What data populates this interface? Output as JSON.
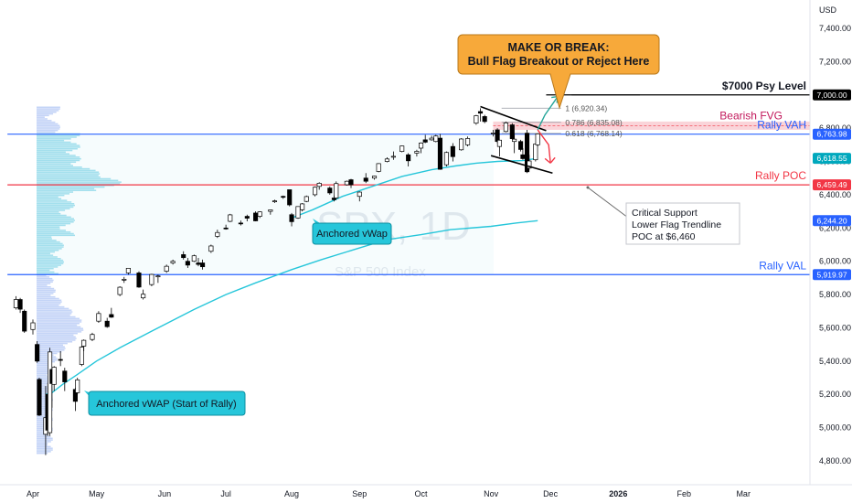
{
  "chart_data": {
    "type": "candlestick",
    "symbol": "SPX, 1D",
    "symbol_desc": "S&P 500 Index",
    "currency": "USD",
    "grid": false,
    "ylim": [
      4700,
      7600
    ],
    "y_ticks": [
      4800,
      5000,
      5200,
      5400,
      5600,
      5800,
      6000,
      6200,
      6400,
      6600,
      6800,
      7000,
      7200,
      7400
    ],
    "x_months": [
      {
        "label": "Apr",
        "date": "2025-04-01"
      },
      {
        "label": "May",
        "date": "2025-05-01"
      },
      {
        "label": "Jun",
        "date": "2025-06-02"
      },
      {
        "label": "Jul",
        "date": "2025-07-01"
      },
      {
        "label": "Aug",
        "date": "2025-08-01"
      },
      {
        "label": "Sep",
        "date": "2025-09-02"
      },
      {
        "label": "Oct",
        "date": "2025-10-01"
      },
      {
        "label": "Nov",
        "date": "2025-11-03"
      },
      {
        "label": "Dec",
        "date": "2025-12-01"
      },
      {
        "label": "2026",
        "date": "2026-01-02"
      },
      {
        "label": "Feb",
        "date": "2026-02-02"
      },
      {
        "label": "Mar",
        "date": "2026-03-02"
      }
    ],
    "candles": [
      {
        "date": "2025-03-24",
        "o": 5720,
        "h": 5790,
        "l": 5710,
        "c": 5770
      },
      {
        "date": "2025-03-26",
        "o": 5770,
        "h": 5780,
        "l": 5690,
        "c": 5712
      },
      {
        "date": "2025-03-28",
        "o": 5700,
        "h": 5710,
        "l": 5570,
        "c": 5580
      },
      {
        "date": "2025-04-01",
        "o": 5590,
        "h": 5650,
        "l": 5560,
        "c": 5630
      },
      {
        "date": "2025-04-03",
        "o": 5500,
        "h": 5520,
        "l": 5390,
        "c": 5400
      },
      {
        "date": "2025-04-04",
        "o": 5290,
        "h": 5300,
        "l": 5070,
        "c": 5075
      },
      {
        "date": "2025-04-07",
        "o": 4960,
        "h": 5250,
        "l": 4835,
        "c": 5060
      },
      {
        "date": "2025-04-08",
        "o": 5200,
        "h": 5270,
        "l": 4950,
        "c": 4985
      },
      {
        "date": "2025-04-09",
        "o": 4970,
        "h": 5480,
        "l": 4950,
        "c": 5455
      },
      {
        "date": "2025-04-10",
        "o": 5350,
        "h": 5360,
        "l": 5120,
        "c": 5265
      },
      {
        "date": "2025-04-11",
        "o": 5260,
        "h": 5370,
        "l": 5220,
        "c": 5363
      },
      {
        "date": "2025-04-14",
        "o": 5410,
        "h": 5460,
        "l": 5370,
        "c": 5406
      },
      {
        "date": "2025-04-16",
        "o": 5340,
        "h": 5360,
        "l": 5220,
        "c": 5275
      },
      {
        "date": "2025-04-21",
        "o": 5230,
        "h": 5240,
        "l": 5100,
        "c": 5158
      },
      {
        "date": "2025-04-22",
        "o": 5210,
        "h": 5300,
        "l": 5200,
        "c": 5287
      },
      {
        "date": "2025-04-24",
        "o": 5380,
        "h": 5490,
        "l": 5370,
        "c": 5484
      },
      {
        "date": "2025-04-25",
        "o": 5490,
        "h": 5530,
        "l": 5460,
        "c": 5525
      },
      {
        "date": "2025-04-29",
        "o": 5530,
        "h": 5570,
        "l": 5520,
        "c": 5560
      },
      {
        "date": "2025-05-02",
        "o": 5640,
        "h": 5700,
        "l": 5630,
        "c": 5686
      },
      {
        "date": "2025-05-06",
        "o": 5640,
        "h": 5660,
        "l": 5600,
        "c": 5607
      },
      {
        "date": "2025-05-08",
        "o": 5680,
        "h": 5720,
        "l": 5660,
        "c": 5664
      },
      {
        "date": "2025-05-12",
        "o": 5800,
        "h": 5850,
        "l": 5790,
        "c": 5844
      },
      {
        "date": "2025-05-14",
        "o": 5890,
        "h": 5906,
        "l": 5870,
        "c": 5892
      },
      {
        "date": "2025-05-16",
        "o": 5930,
        "h": 5960,
        "l": 5920,
        "c": 5958
      },
      {
        "date": "2025-05-21",
        "o": 5930,
        "h": 5940,
        "l": 5840,
        "c": 5845
      },
      {
        "date": "2025-05-23",
        "o": 5780,
        "h": 5830,
        "l": 5770,
        "c": 5802
      },
      {
        "date": "2025-05-27",
        "o": 5860,
        "h": 5925,
        "l": 5850,
        "c": 5921
      },
      {
        "date": "2025-05-30",
        "o": 5910,
        "h": 5920,
        "l": 5870,
        "c": 5912
      },
      {
        "date": "2025-06-03",
        "o": 5940,
        "h": 5980,
        "l": 5930,
        "c": 5970
      },
      {
        "date": "2025-06-06",
        "o": 5990,
        "h": 6010,
        "l": 5980,
        "c": 6000
      },
      {
        "date": "2025-06-11",
        "o": 6040,
        "h": 6060,
        "l": 6010,
        "c": 6022
      },
      {
        "date": "2025-06-13",
        "o": 6000,
        "h": 6020,
        "l": 5960,
        "c": 5977
      },
      {
        "date": "2025-06-16",
        "o": 6000,
        "h": 6040,
        "l": 5995,
        "c": 6033
      },
      {
        "date": "2025-06-18",
        "o": 5990,
        "h": 6020,
        "l": 5970,
        "c": 5981
      },
      {
        "date": "2025-06-20",
        "o": 5990,
        "h": 6010,
        "l": 5950,
        "c": 5967
      },
      {
        "date": "2025-06-24",
        "o": 6060,
        "h": 6100,
        "l": 6050,
        "c": 6092
      },
      {
        "date": "2025-06-27",
        "o": 6150,
        "h": 6190,
        "l": 6140,
        "c": 6173
      },
      {
        "date": "2025-07-01",
        "o": 6200,
        "h": 6220,
        "l": 6190,
        "c": 6198
      },
      {
        "date": "2025-07-03",
        "o": 6240,
        "h": 6285,
        "l": 6235,
        "c": 6279
      },
      {
        "date": "2025-07-08",
        "o": 6230,
        "h": 6245,
        "l": 6215,
        "c": 6226
      },
      {
        "date": "2025-07-11",
        "o": 6270,
        "h": 6280,
        "l": 6240,
        "c": 6259
      },
      {
        "date": "2025-07-15",
        "o": 6290,
        "h": 6300,
        "l": 6240,
        "c": 6243
      },
      {
        "date": "2025-07-17",
        "o": 6270,
        "h": 6300,
        "l": 6260,
        "c": 6297
      },
      {
        "date": "2025-07-22",
        "o": 6300,
        "h": 6310,
        "l": 6280,
        "c": 6309
      },
      {
        "date": "2025-07-24",
        "o": 6360,
        "h": 6370,
        "l": 6350,
        "c": 6363
      },
      {
        "date": "2025-07-28",
        "o": 6390,
        "h": 6395,
        "l": 6375,
        "c": 6389
      },
      {
        "date": "2025-07-31",
        "o": 6430,
        "h": 6430,
        "l": 6330,
        "c": 6339
      },
      {
        "date": "2025-08-01",
        "o": 6280,
        "h": 6290,
        "l": 6210,
        "c": 6238
      },
      {
        "date": "2025-08-04",
        "o": 6260,
        "h": 6330,
        "l": 6255,
        "c": 6329
      },
      {
        "date": "2025-08-06",
        "o": 6310,
        "h": 6350,
        "l": 6300,
        "c": 6345
      },
      {
        "date": "2025-08-08",
        "o": 6360,
        "h": 6395,
        "l": 6355,
        "c": 6389
      },
      {
        "date": "2025-08-12",
        "o": 6400,
        "h": 6450,
        "l": 6390,
        "c": 6445
      },
      {
        "date": "2025-08-14",
        "o": 6450,
        "h": 6475,
        "l": 6430,
        "c": 6469
      },
      {
        "date": "2025-08-19",
        "o": 6440,
        "h": 6450,
        "l": 6400,
        "c": 6411
      },
      {
        "date": "2025-08-21",
        "o": 6380,
        "h": 6395,
        "l": 6360,
        "c": 6370
      },
      {
        "date": "2025-08-22",
        "o": 6380,
        "h": 6480,
        "l": 6375,
        "c": 6467
      },
      {
        "date": "2025-08-27",
        "o": 6460,
        "h": 6485,
        "l": 6455,
        "c": 6481
      },
      {
        "date": "2025-08-29",
        "o": 6490,
        "h": 6495,
        "l": 6440,
        "c": 6460
      },
      {
        "date": "2025-09-02",
        "o": 6390,
        "h": 6420,
        "l": 6360,
        "c": 6416
      },
      {
        "date": "2025-09-05",
        "o": 6500,
        "h": 6530,
        "l": 6470,
        "c": 6481
      },
      {
        "date": "2025-09-09",
        "o": 6500,
        "h": 6515,
        "l": 6490,
        "c": 6512
      },
      {
        "date": "2025-09-11",
        "o": 6540,
        "h": 6590,
        "l": 6535,
        "c": 6587
      },
      {
        "date": "2025-09-15",
        "o": 6600,
        "h": 6625,
        "l": 6595,
        "c": 6615
      },
      {
        "date": "2025-09-18",
        "o": 6630,
        "h": 6660,
        "l": 6610,
        "c": 6631
      },
      {
        "date": "2025-09-22",
        "o": 6660,
        "h": 6695,
        "l": 6655,
        "c": 6693
      },
      {
        "date": "2025-09-25",
        "o": 6640,
        "h": 6650,
        "l": 6570,
        "c": 6604
      },
      {
        "date": "2025-09-29",
        "o": 6650,
        "h": 6670,
        "l": 6630,
        "c": 6661
      },
      {
        "date": "2025-10-01",
        "o": 6680,
        "h": 6715,
        "l": 6650,
        "c": 6711
      },
      {
        "date": "2025-10-03",
        "o": 6730,
        "h": 6760,
        "l": 6710,
        "c": 6716
      },
      {
        "date": "2025-10-06",
        "o": 6730,
        "h": 6755,
        "l": 6725,
        "c": 6740
      },
      {
        "date": "2025-10-08",
        "o": 6720,
        "h": 6760,
        "l": 6715,
        "c": 6753
      },
      {
        "date": "2025-10-10",
        "o": 6740,
        "h": 6765,
        "l": 6550,
        "c": 6553
      },
      {
        "date": "2025-10-13",
        "o": 6580,
        "h": 6660,
        "l": 6570,
        "c": 6654
      },
      {
        "date": "2025-10-16",
        "o": 6690,
        "h": 6710,
        "l": 6600,
        "c": 6629
      },
      {
        "date": "2025-10-20",
        "o": 6670,
        "h": 6740,
        "l": 6665,
        "c": 6735
      },
      {
        "date": "2025-10-23",
        "o": 6700,
        "h": 6750,
        "l": 6690,
        "c": 6738
      },
      {
        "date": "2025-10-27",
        "o": 6830,
        "h": 6880,
        "l": 6820,
        "c": 6875
      },
      {
        "date": "2025-10-29",
        "o": 6900,
        "h": 6920,
        "l": 6840,
        "c": 6890
      },
      {
        "date": "2025-10-31",
        "o": 6870,
        "h": 6880,
        "l": 6830,
        "c": 6840
      },
      {
        "date": "2025-11-04",
        "o": 6770,
        "h": 6790,
        "l": 6750,
        "c": 6771
      },
      {
        "date": "2025-11-06",
        "o": 6790,
        "h": 6800,
        "l": 6710,
        "c": 6720
      },
      {
        "date": "2025-11-07",
        "o": 6690,
        "h": 6730,
        "l": 6630,
        "c": 6728
      },
      {
        "date": "2025-11-10",
        "o": 6780,
        "h": 6840,
        "l": 6775,
        "c": 6832
      },
      {
        "date": "2025-11-13",
        "o": 6820,
        "h": 6830,
        "l": 6730,
        "c": 6737
      },
      {
        "date": "2025-11-14",
        "o": 6720,
        "h": 6760,
        "l": 6650,
        "c": 6734
      },
      {
        "date": "2025-11-17",
        "o": 6720,
        "h": 6730,
        "l": 6660,
        "c": 6672
      },
      {
        "date": "2025-11-18",
        "o": 6640,
        "h": 6680,
        "l": 6610,
        "c": 6617
      },
      {
        "date": "2025-11-20",
        "o": 6770,
        "h": 6790,
        "l": 6530,
        "c": 6538
      },
      {
        "date": "2025-11-21",
        "o": 6560,
        "h": 6640,
        "l": 6550,
        "c": 6603
      },
      {
        "date": "2025-11-24",
        "o": 6610,
        "h": 6710,
        "l": 6600,
        "c": 6705
      },
      {
        "date": "2025-11-25",
        "o": 6700,
        "h": 6770,
        "l": 6690,
        "c": 6766
      }
    ],
    "vwap_series": [
      {
        "name": "Anchored vWAP (Start of Rally)",
        "points": [
          [
            "2025-04-07",
            5200
          ],
          [
            "2025-04-10",
            5210
          ],
          [
            "2025-04-15",
            5260
          ],
          [
            "2025-04-22",
            5320
          ],
          [
            "2025-05-01",
            5400
          ],
          [
            "2025-05-12",
            5480
          ],
          [
            "2025-05-27",
            5580
          ],
          [
            "2025-06-16",
            5710
          ],
          [
            "2025-07-01",
            5800
          ],
          [
            "2025-07-15",
            5870
          ],
          [
            "2025-08-01",
            5950
          ],
          [
            "2025-08-15",
            6010
          ],
          [
            "2025-09-02",
            6080
          ],
          [
            "2025-09-15",
            6130
          ],
          [
            "2025-10-01",
            6160
          ],
          [
            "2025-10-15",
            6190
          ],
          [
            "2025-11-03",
            6210
          ],
          [
            "2025-11-15",
            6230
          ],
          [
            "2025-11-25",
            6244
          ]
        ]
      },
      {
        "name": "Anchored vWap",
        "points": [
          [
            "2025-08-01",
            6260
          ],
          [
            "2025-08-11",
            6310
          ],
          [
            "2025-08-25",
            6390
          ],
          [
            "2025-09-08",
            6450
          ],
          [
            "2025-09-22",
            6510
          ],
          [
            "2025-10-06",
            6550
          ],
          [
            "2025-10-17",
            6573
          ],
          [
            "2025-10-27",
            6590
          ],
          [
            "2025-11-06",
            6600
          ],
          [
            "2025-11-18",
            6605
          ],
          [
            "2025-11-25",
            6619
          ]
        ]
      }
    ],
    "levels": [
      {
        "name": "$7000 Psy Level",
        "value": 7000,
        "tag": "7,000.00",
        "color": "#000000",
        "from": "2025-11-29",
        "text_color": "#131722"
      },
      {
        "name": "Rally VAH",
        "value": 6763.98,
        "tag": "6,763.98",
        "color": "#2962ff",
        "from": "2025-03-20",
        "text_color": "#2962ff"
      },
      {
        "name": "Rally POC",
        "value": 6459.49,
        "tag": "6,459.49",
        "color": "#f23645",
        "from": "2025-03-20",
        "text_color": "#f23645"
      },
      {
        "name": "Rally VAL",
        "value": 5919.97,
        "tag": "5,919.97",
        "color": "#2962ff",
        "from": "2025-03-20",
        "text_color": "#2962ff"
      }
    ],
    "price_tags": [
      {
        "value": 6618.55,
        "tag": "6,618.55",
        "color": "#00a8bd"
      },
      {
        "value": 6244.2,
        "tag": "6,244.20",
        "color": "#2962ff"
      }
    ],
    "fibs": [
      {
        "label": "1 (6,920.34)",
        "value": 6920.34
      },
      {
        "label": "0.786 (6,835.08)",
        "value": 6835.08
      },
      {
        "label": "0.618 (6,768.14)",
        "value": 6768.14
      }
    ],
    "bearish_fvg": {
      "label": "Bearish FVG",
      "low": 6790,
      "high": 6840
    },
    "flag_lines": [
      {
        "from": [
          "2025-10-29",
          6930
        ],
        "to": [
          "2025-11-29",
          6785
        ]
      },
      {
        "from": [
          "2025-11-03",
          6635
        ],
        "to": [
          "2025-12-02",
          6530
        ]
      }
    ],
    "callout_main": {
      "line1": "MAKE OR BREAK:",
      "line2": "Bull Flag Breakout or Reject Here"
    },
    "callout_support": {
      "line1": "Critical Support",
      "line2": "Lower Flag Trendline",
      "line3": "POC at $6,460"
    },
    "label_vwap1": "Anchored vWAP (Start of Rally)",
    "label_vwap2": "Anchored vWap"
  }
}
